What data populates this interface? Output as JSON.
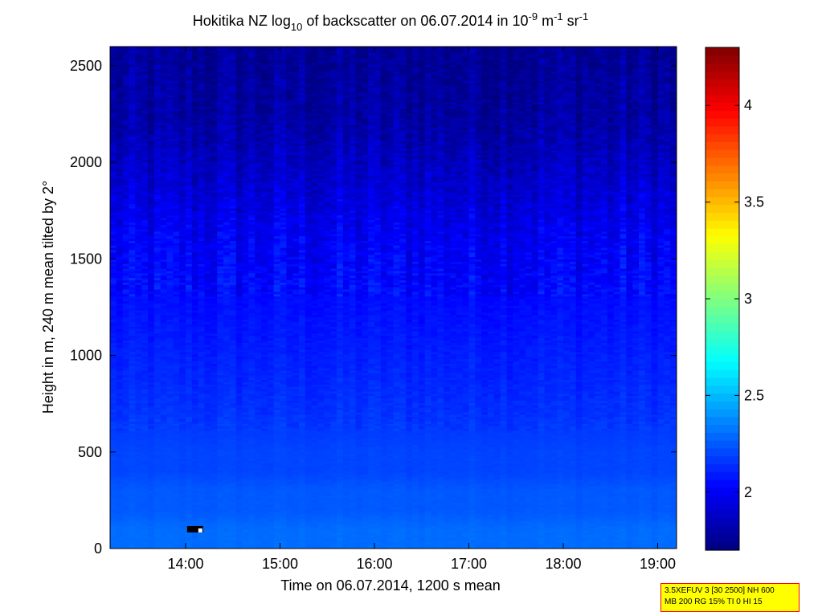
{
  "chart_data": {
    "type": "heatmap",
    "title_parts": {
      "prefix": "Hokitika NZ log",
      "log_sub": "10",
      "middle": " of backscatter on 06.07.2014 in 10",
      "exp1": "-9",
      "unit_m": " m",
      "exp2": "-1",
      "unit_sr": " sr",
      "exp3": "-1"
    },
    "xlabel": "Time on 06.07.2014, 1200 s mean",
    "ylabel": "Height in m, 240 m mean tilted by 2°",
    "x_range_hours": [
      13.2,
      19.2
    ],
    "xlim": [
      "13:12",
      "19:12"
    ],
    "xticks": [
      "14:00",
      "15:00",
      "16:00",
      "17:00",
      "18:00",
      "19:00"
    ],
    "xtick_hours": [
      14,
      15,
      16,
      17,
      18,
      19
    ],
    "ylim": [
      0,
      2600
    ],
    "yticks": [
      0,
      500,
      1000,
      1500,
      2000,
      2500
    ],
    "colorbar": {
      "range": [
        1.7,
        4.3
      ],
      "ticks": [
        2,
        2.5,
        3,
        3.5,
        4
      ],
      "tick_labels": [
        "2",
        "2.5",
        "3",
        "3.5",
        "4"
      ],
      "colormap": "jet"
    },
    "field_profile": {
      "heights_m": [
        0,
        100,
        200,
        300,
        400,
        500,
        700,
        1000,
        1300,
        1600,
        1900,
        2200,
        2600
      ],
      "log10_backscatter": [
        2.3,
        2.3,
        2.25,
        2.25,
        2.2,
        2.2,
        2.15,
        2.1,
        2.05,
        2.0,
        1.9,
        1.8,
        1.75
      ]
    },
    "missing_data_marker": {
      "time": "14:05",
      "height_m": 100
    }
  },
  "info_box": {
    "line1": "3.5XEFUV 3 [30 2500] NH 600",
    "line2": "MB 200 RG 15% TI 0 HI 15"
  }
}
